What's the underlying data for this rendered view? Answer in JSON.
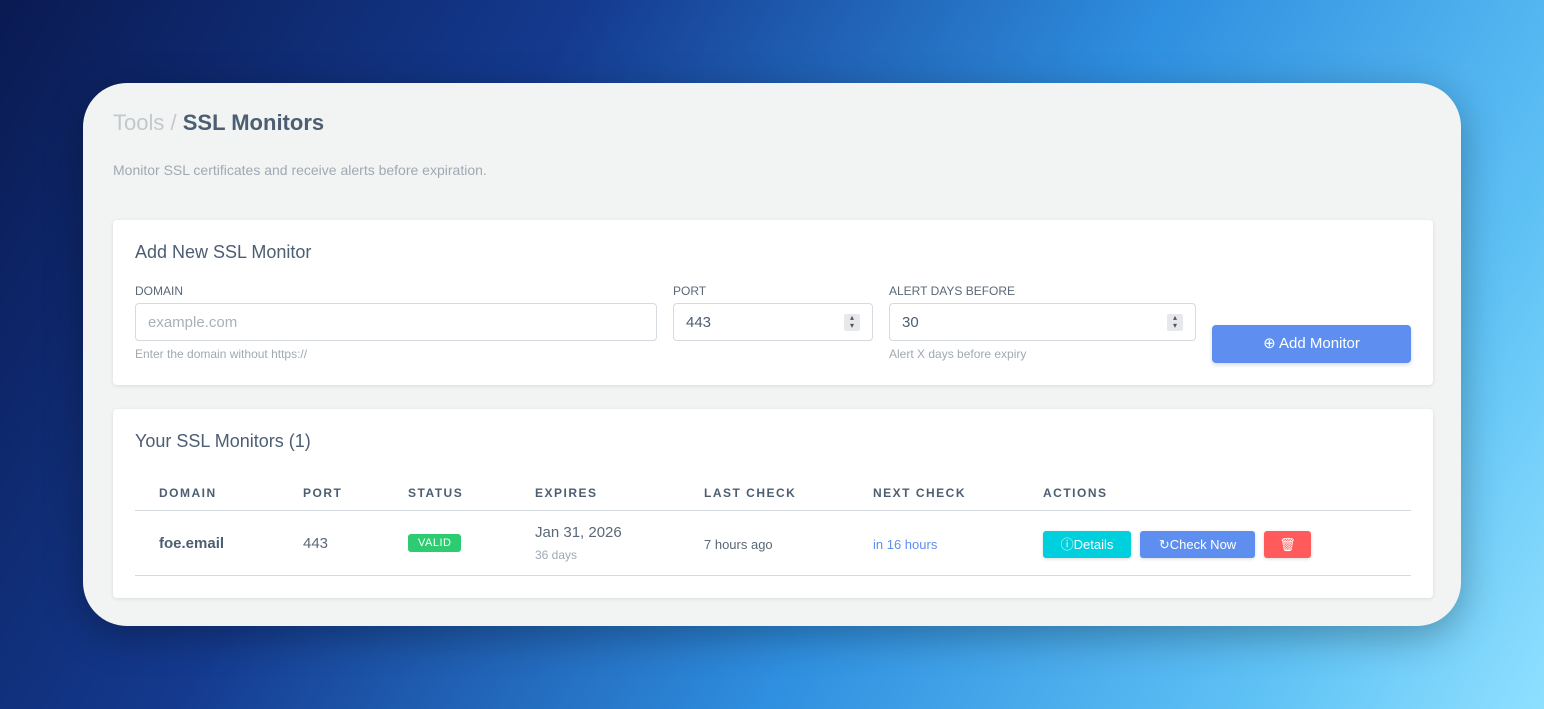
{
  "breadcrumb": {
    "parent": "Tools",
    "separator": "/",
    "current": "SSL Monitors"
  },
  "subtitle": "Monitor SSL certificates and receive alerts before expiration.",
  "add_form": {
    "title": "Add New SSL Monitor",
    "domain_label": "DOMAIN",
    "domain_placeholder": "example.com",
    "domain_hint": "Enter the domain without https://",
    "port_label": "PORT",
    "port_value": "443",
    "alert_label": "ALERT DAYS BEFORE",
    "alert_value": "30",
    "alert_hint": "Alert X days before expiry",
    "add_button": "Add Monitor"
  },
  "monitors": {
    "title": "Your SSL Monitors (1)",
    "columns": [
      "DOMAIN",
      "PORT",
      "STATUS",
      "EXPIRES",
      "LAST CHECK",
      "NEXT CHECK",
      "ACTIONS"
    ],
    "rows": [
      {
        "domain": "foe.email",
        "port": "443",
        "status": "VALID",
        "expires": "Jan 31, 2026",
        "expires_in": "36 days",
        "last_check": "7 hours ago",
        "next_check": "in 16 hours",
        "details": "Details",
        "check_now": "Check Now"
      }
    ]
  },
  "colors": {
    "accent": "#5e8ff0",
    "valid": "#2ecc71",
    "details": "#00cfdd",
    "delete": "#ff5b5c"
  }
}
